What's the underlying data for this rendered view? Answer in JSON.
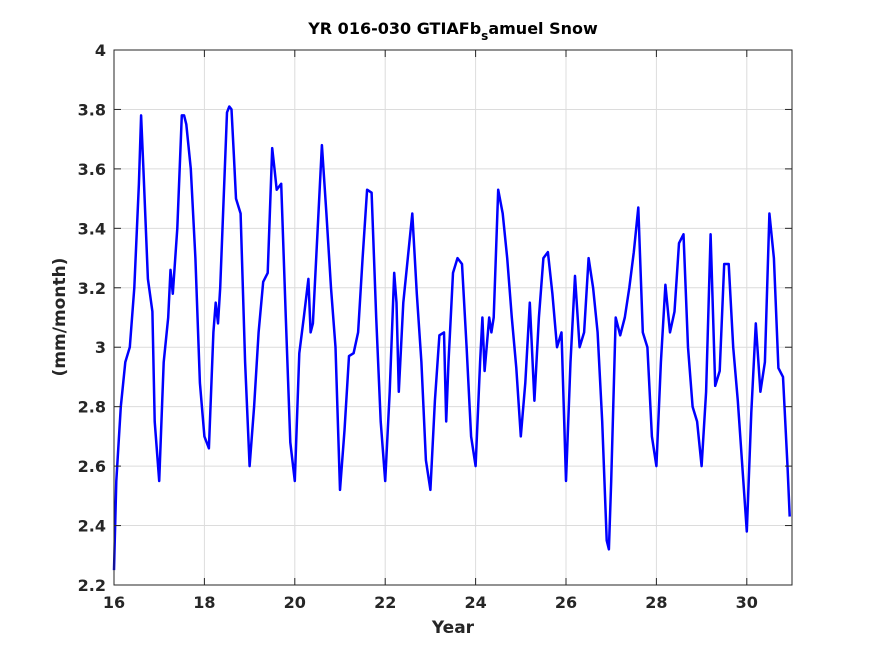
{
  "chart_data": {
    "type": "line",
    "title_main": "YR 016-030 GTIAFb",
    "title_sub": "s",
    "title_tail": "amuel Snow",
    "xlabel": "Year",
    "ylabel": "(mm/month)",
    "xlim": [
      16,
      31
    ],
    "ylim": [
      2.2,
      4
    ],
    "xticks": [
      "16",
      "18",
      "20",
      "22",
      "24",
      "26",
      "28",
      "30"
    ],
    "yticks": [
      "2.2",
      "2.4",
      "2.6",
      "2.8",
      "3",
      "3.2",
      "3.4",
      "3.6",
      "3.8",
      "4"
    ],
    "grid": true,
    "line_color": "#0000ff",
    "x": [
      16.0,
      16.05,
      16.15,
      16.25,
      16.35,
      16.45,
      16.55,
      16.6,
      16.65,
      16.75,
      16.85,
      16.9,
      17.0,
      17.1,
      17.2,
      17.25,
      17.3,
      17.4,
      17.5,
      17.55,
      17.6,
      17.7,
      17.8,
      17.9,
      18.0,
      18.1,
      18.2,
      18.25,
      18.3,
      18.35,
      18.4,
      18.5,
      18.55,
      18.6,
      18.65,
      18.7,
      18.8,
      18.9,
      19.0,
      19.1,
      19.2,
      19.3,
      19.4,
      19.5,
      19.55,
      19.6,
      19.7,
      19.8,
      19.9,
      20.0,
      20.1,
      20.2,
      20.3,
      20.35,
      20.4,
      20.5,
      20.6,
      20.7,
      20.8,
      20.9,
      21.0,
      21.1,
      21.2,
      21.3,
      21.4,
      21.5,
      21.6,
      21.7,
      21.8,
      21.9,
      22.0,
      22.1,
      22.2,
      22.25,
      22.3,
      22.4,
      22.5,
      22.6,
      22.7,
      22.8,
      22.9,
      23.0,
      23.1,
      23.2,
      23.3,
      23.35,
      23.4,
      23.5,
      23.6,
      23.7,
      23.8,
      23.9,
      24.0,
      24.1,
      24.15,
      24.2,
      24.3,
      24.35,
      24.4,
      24.5,
      24.6,
      24.7,
      24.8,
      24.9,
      25.0,
      25.1,
      25.2,
      25.3,
      25.4,
      25.5,
      25.6,
      25.7,
      25.8,
      25.9,
      26.0,
      26.1,
      26.2,
      26.3,
      26.4,
      26.5,
      26.6,
      26.7,
      26.8,
      26.9,
      26.95,
      27.0,
      27.1,
      27.2,
      27.3,
      27.4,
      27.5,
      27.6,
      27.7,
      27.8,
      27.9,
      28.0,
      28.1,
      28.2,
      28.3,
      28.4,
      28.5,
      28.6,
      28.7,
      28.8,
      28.9,
      29.0,
      29.1,
      29.2,
      29.3,
      29.4,
      29.5,
      29.6,
      29.7,
      29.8,
      29.9,
      30.0,
      30.1,
      30.2,
      30.3,
      30.4,
      30.5,
      30.6,
      30.7,
      30.8,
      30.9,
      30.95
    ],
    "y": [
      2.25,
      2.55,
      2.8,
      2.95,
      3.0,
      3.2,
      3.55,
      3.78,
      3.6,
      3.23,
      3.12,
      2.75,
      2.55,
      2.95,
      3.1,
      3.26,
      3.18,
      3.4,
      3.78,
      3.78,
      3.75,
      3.6,
      3.3,
      2.88,
      2.7,
      2.66,
      3.05,
      3.15,
      3.08,
      3.2,
      3.4,
      3.79,
      3.81,
      3.8,
      3.65,
      3.5,
      3.45,
      2.95,
      2.6,
      2.8,
      3.05,
      3.22,
      3.25,
      3.67,
      3.6,
      3.53,
      3.55,
      3.1,
      2.68,
      2.55,
      2.98,
      3.1,
      3.23,
      3.05,
      3.08,
      3.38,
      3.68,
      3.45,
      3.2,
      3.0,
      2.52,
      2.72,
      2.97,
      2.98,
      3.05,
      3.3,
      3.53,
      3.52,
      3.1,
      2.75,
      2.55,
      2.85,
      3.25,
      3.15,
      2.85,
      3.15,
      3.3,
      3.45,
      3.18,
      2.95,
      2.62,
      2.52,
      2.82,
      3.04,
      3.05,
      2.75,
      2.95,
      3.25,
      3.3,
      3.28,
      3.0,
      2.7,
      2.6,
      2.95,
      3.1,
      2.92,
      3.1,
      3.05,
      3.1,
      3.53,
      3.45,
      3.3,
      3.1,
      2.93,
      2.7,
      2.88,
      3.15,
      2.82,
      3.1,
      3.3,
      3.32,
      3.18,
      3.0,
      3.05,
      2.55,
      2.95,
      3.24,
      3.0,
      3.05,
      3.3,
      3.2,
      3.05,
      2.75,
      2.35,
      2.32,
      2.55,
      3.1,
      3.04,
      3.1,
      3.2,
      3.32,
      3.47,
      3.05,
      3.0,
      2.7,
      2.6,
      2.95,
      3.21,
      3.05,
      3.12,
      3.35,
      3.38,
      3.0,
      2.8,
      2.75,
      2.6,
      2.85,
      3.38,
      2.87,
      2.92,
      3.28,
      3.28,
      3.0,
      2.82,
      2.6,
      2.38,
      2.78,
      3.08,
      2.85,
      2.95,
      3.45,
      3.3,
      2.93,
      2.9,
      2.6,
      2.43
    ]
  }
}
